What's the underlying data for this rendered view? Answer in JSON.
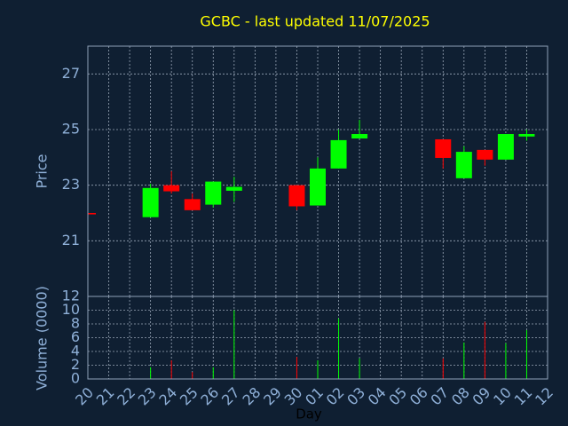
{
  "chart_data": {
    "type": "candlestick",
    "title": "GCBC - last updated 11/07/2025",
    "y_label": "Price",
    "volume_label": "Volume (0000)",
    "x_label": "Day",
    "categories": [
      "20",
      "21",
      "22",
      "23",
      "24",
      "25",
      "26",
      "27",
      "28",
      "29",
      "30",
      "01",
      "02",
      "03",
      "04",
      "05",
      "06",
      "07",
      "08",
      "09",
      "10",
      "11",
      "12"
    ],
    "open": [
      22.0,
      null,
      null,
      21.85,
      23.0,
      22.5,
      22.3,
      22.8,
      null,
      null,
      23.0,
      22.27,
      23.6,
      24.68,
      null,
      null,
      null,
      24.65,
      23.25,
      24.27,
      23.92,
      24.75,
      null
    ],
    "high": [
      22.0,
      null,
      null,
      23.05,
      23.5,
      22.7,
      23.13,
      23.3,
      null,
      null,
      23.0,
      24.0,
      25.0,
      25.35,
      null,
      null,
      null,
      24.65,
      24.4,
      24.27,
      24.84,
      25.0,
      null
    ],
    "low": [
      21.95,
      null,
      null,
      21.85,
      22.7,
      22.1,
      22.2,
      22.4,
      null,
      null,
      22.1,
      22.27,
      23.6,
      24.68,
      null,
      null,
      null,
      23.6,
      23.25,
      23.7,
      23.92,
      24.6,
      null
    ],
    "close": [
      21.95,
      null,
      null,
      22.9,
      22.78,
      22.1,
      23.13,
      22.94,
      null,
      null,
      22.24,
      23.6,
      24.62,
      24.84,
      null,
      null,
      null,
      23.98,
      24.2,
      23.92,
      24.84,
      24.84,
      null
    ],
    "volume": [
      null,
      null,
      null,
      1.7,
      2.7,
      1.0,
      1.7,
      10.0,
      null,
      null,
      3.2,
      2.7,
      8.8,
      3.0,
      null,
      null,
      null,
      3.0,
      5.3,
      8.3,
      5.2,
      7.1,
      null
    ],
    "up_color": "#00ff00",
    "down_color": "#ff0000",
    "ylim": [
      19,
      28
    ],
    "yticks": [
      21,
      23,
      25,
      27
    ],
    "volume_ylim": [
      0,
      12
    ],
    "volume_yticks": [
      0,
      2,
      4,
      6,
      8,
      10,
      12
    ],
    "grid": true
  }
}
